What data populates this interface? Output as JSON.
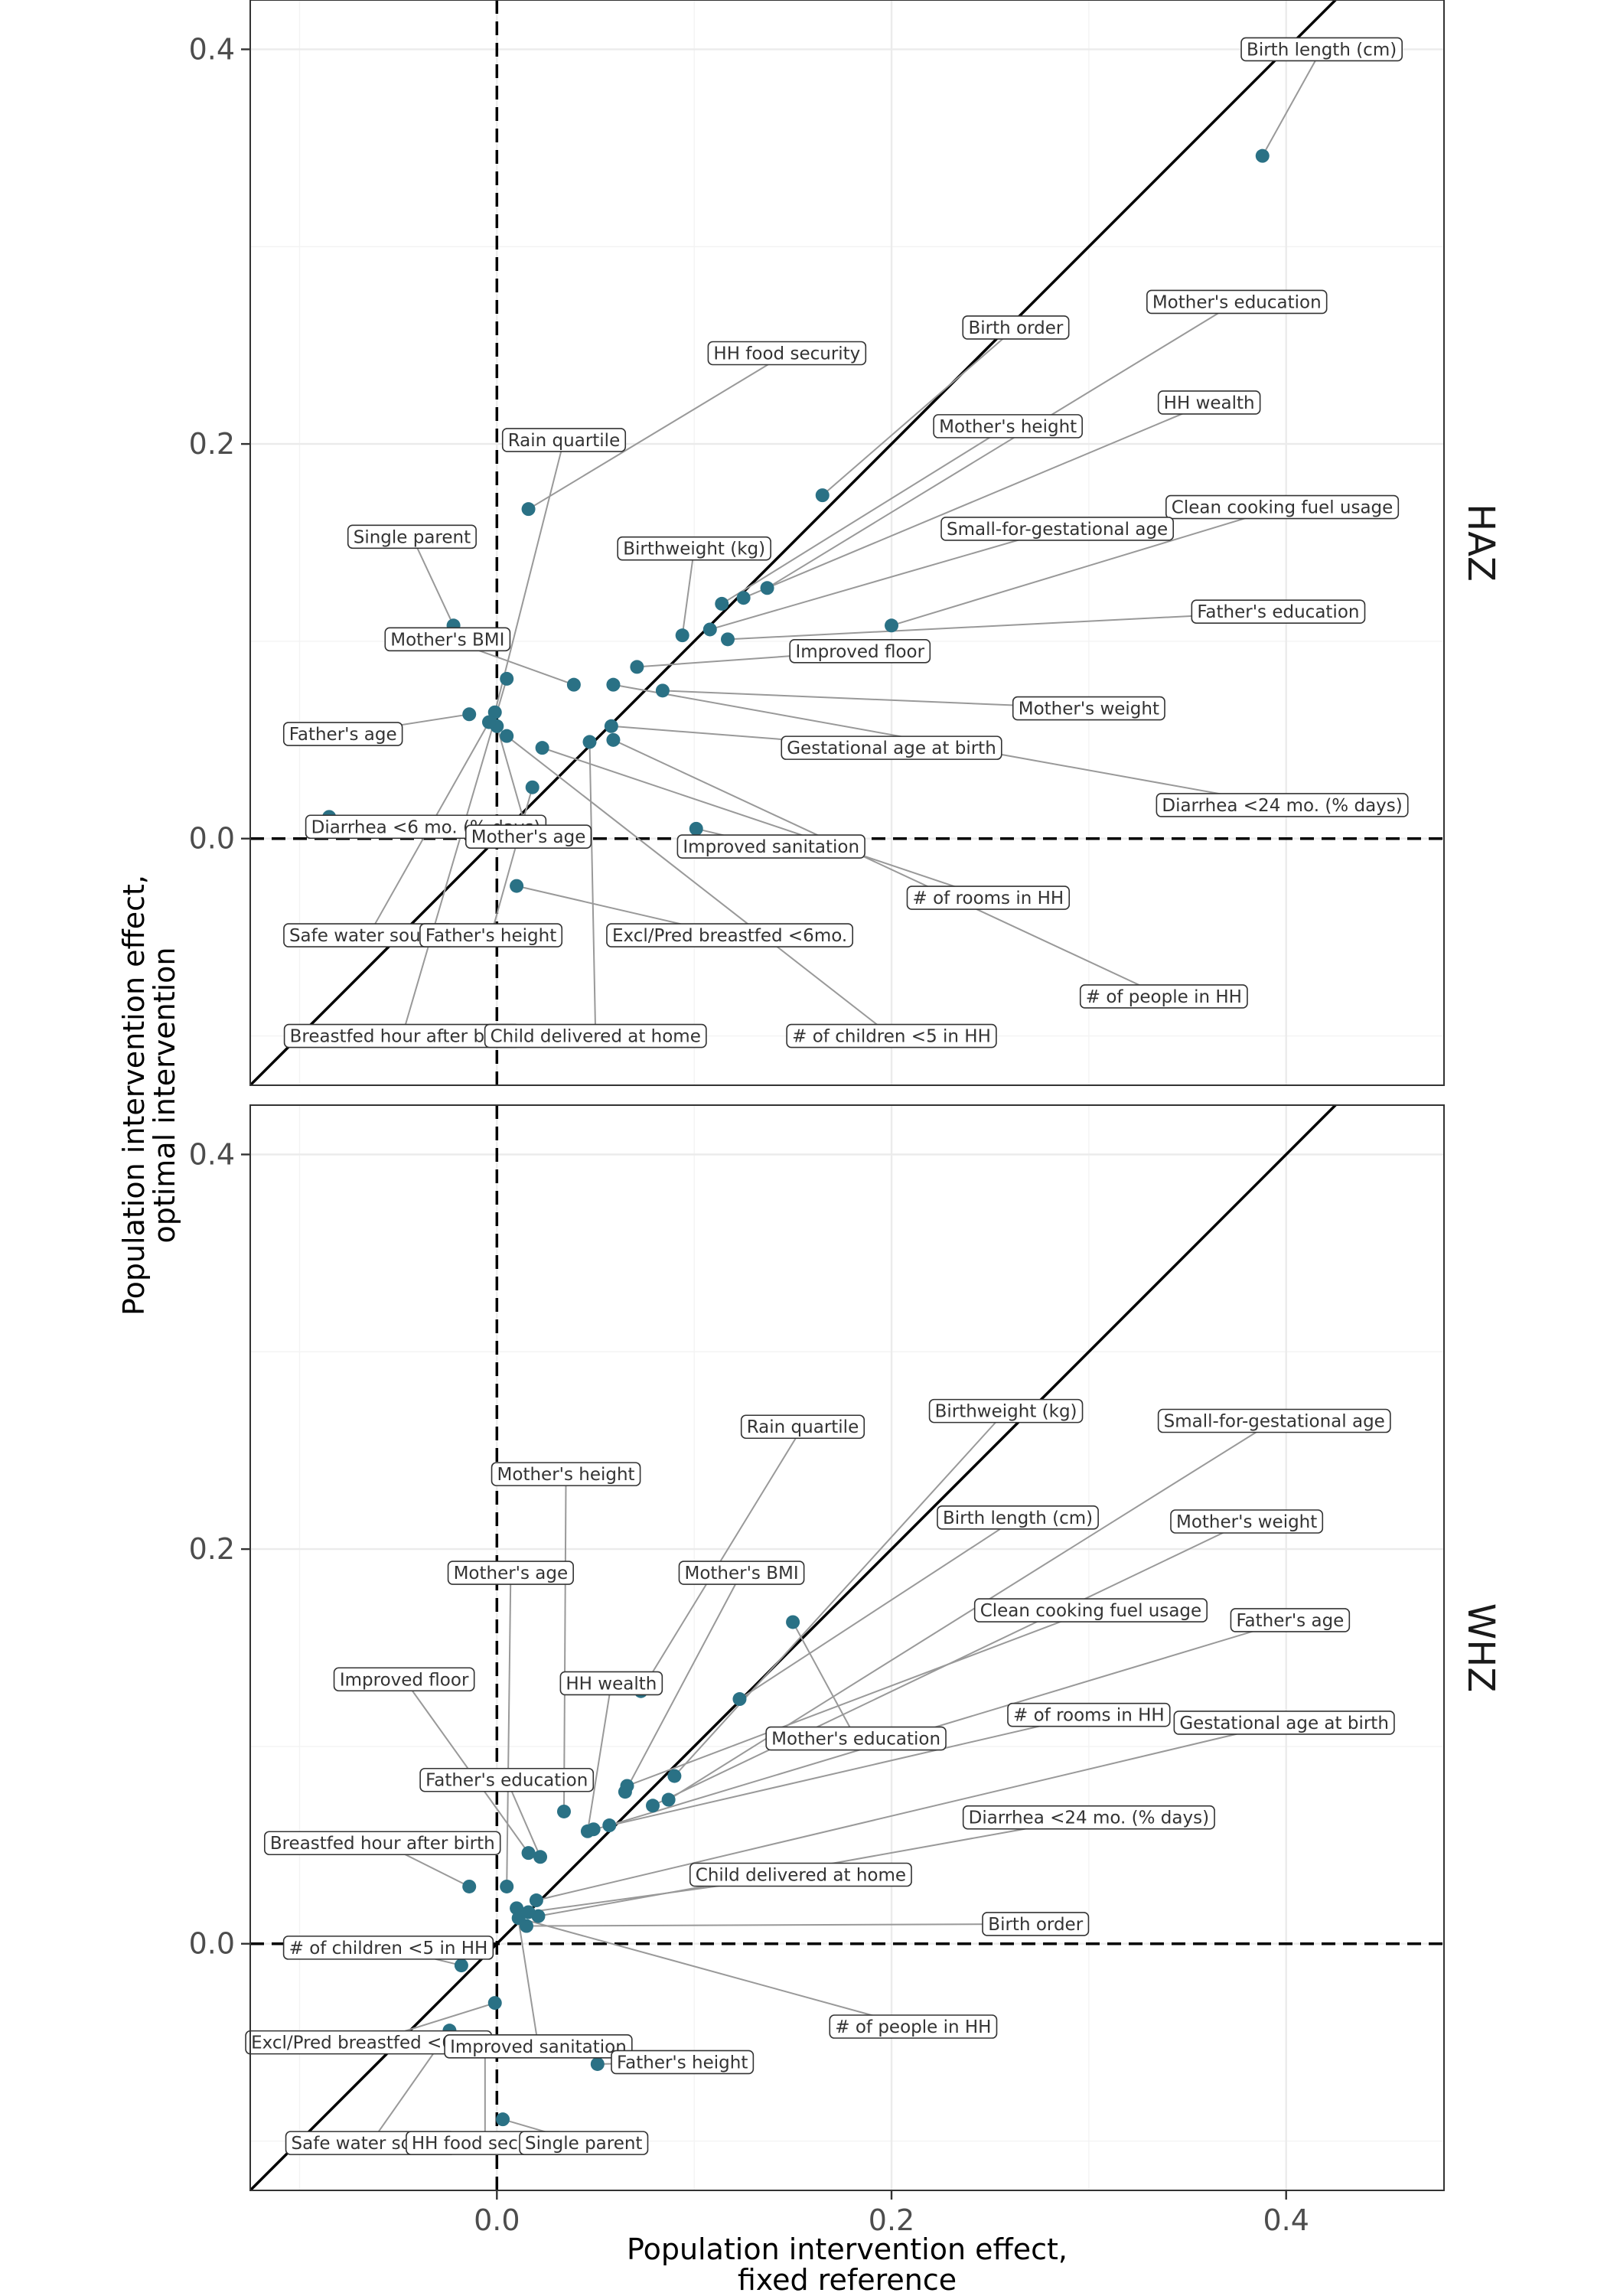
{
  "chart_data": {
    "type": "scatter",
    "xlabel": [
      "Population intervention effect,",
      "fixed reference"
    ],
    "ylabel": [
      "Population intervention effect,",
      "optimal intervention"
    ],
    "xlim": [
      -0.125,
      0.48
    ],
    "ylim": [
      -0.125,
      0.425
    ],
    "x_ticks": [
      0.0,
      0.2,
      0.4
    ],
    "y_ticks": [
      0.0,
      0.2,
      0.4
    ],
    "x_tick_labels": [
      "0.0",
      "0.2",
      "0.4"
    ],
    "y_tick_labels": [
      "0.0",
      "0.2",
      "0.4"
    ],
    "grid": true,
    "reference_lines": {
      "vertical_dashed_x": 0,
      "horizontal_dashed_y": 0,
      "identity_line": true
    },
    "point_color": "#2a7185",
    "panels": [
      {
        "strip": "HAZ",
        "points": [
          {
            "label": "Birth length (cm)",
            "x": 0.388,
            "y": 0.346,
            "lx": 0.418,
            "ly": 0.4
          },
          {
            "label": "Mother's education",
            "x": 0.137,
            "y": 0.127,
            "lx": 0.375,
            "ly": 0.272
          },
          {
            "label": "Birth order",
            "x": 0.165,
            "y": 0.174,
            "lx": 0.263,
            "ly": 0.259
          },
          {
            "label": "HH food security",
            "x": 0.016,
            "y": 0.167,
            "lx": 0.147,
            "ly": 0.246
          },
          {
            "label": "HH wealth",
            "x": 0.125,
            "y": 0.122,
            "lx": 0.361,
            "ly": 0.221
          },
          {
            "label": "Rain quartile",
            "x": -0.001,
            "y": 0.064,
            "lx": 0.034,
            "ly": 0.202
          },
          {
            "label": "Mother's height",
            "x": 0.114,
            "y": 0.119,
            "lx": 0.259,
            "ly": 0.209
          },
          {
            "label": "Clean cooking fuel usage",
            "x": 0.2,
            "y": 0.108,
            "lx": 0.398,
            "ly": 0.168
          },
          {
            "label": "Small-for-gestational age",
            "x": 0.108,
            "y": 0.106,
            "lx": 0.284,
            "ly": 0.157
          },
          {
            "label": "Single parent",
            "x": -0.022,
            "y": 0.108,
            "lx": -0.043,
            "ly": 0.153
          },
          {
            "label": "Birthweight (kg)",
            "x": 0.094,
            "y": 0.103,
            "lx": 0.1,
            "ly": 0.147
          },
          {
            "label": "Father's education",
            "x": 0.117,
            "y": 0.101,
            "lx": 0.396,
            "ly": 0.115
          },
          {
            "label": "Mother's BMI",
            "x": 0.039,
            "y": 0.078,
            "lx": -0.025,
            "ly": 0.101
          },
          {
            "label": "Improved floor",
            "x": 0.071,
            "y": 0.087,
            "lx": 0.184,
            "ly": 0.095
          },
          {
            "label": "Mother's weight",
            "x": 0.084,
            "y": 0.075,
            "lx": 0.3,
            "ly": 0.066
          },
          {
            "label": "Father's age",
            "x": -0.014,
            "y": 0.063,
            "lx": -0.078,
            "ly": 0.053
          },
          {
            "label": "Gestational age at birth",
            "x": 0.058,
            "y": 0.057,
            "lx": 0.2,
            "ly": 0.046
          },
          {
            "label": "Diarrhea <24 mo.  (% days)",
            "x": 0.059,
            "y": 0.078,
            "lx": 0.398,
            "ly": 0.017
          },
          {
            "label": "Diarrhea <6 mo. (% days)",
            "x": -0.085,
            "y": 0.011,
            "lx": -0.036,
            "ly": 0.006
          },
          {
            "label": "Mother's age",
            "x": 0.0,
            "y": 0.057,
            "lx": 0.016,
            "ly": 0.001
          },
          {
            "label": "Improved sanitation",
            "x": 0.101,
            "y": 0.005,
            "lx": 0.139,
            "ly": -0.004
          },
          {
            "label": "# of rooms in HH",
            "x": 0.023,
            "y": 0.046,
            "lx": 0.249,
            "ly": -0.03
          },
          {
            "label": "Safe water source",
            "x": -0.004,
            "y": 0.059,
            "lx": -0.065,
            "ly": -0.049
          },
          {
            "label": "Father's height",
            "x": 0.018,
            "y": 0.026,
            "lx": -0.003,
            "ly": -0.049
          },
          {
            "label": "Excl/Pred breastfed <6mo.",
            "x": 0.01,
            "y": -0.024,
            "lx": 0.118,
            "ly": -0.049
          },
          {
            "label": "# of people in HH",
            "x": 0.059,
            "y": 0.05,
            "lx": 0.338,
            "ly": -0.08
          },
          {
            "label": "Breastfed hour after birth",
            "x": 0.005,
            "y": 0.081,
            "lx": -0.048,
            "ly": -0.1
          },
          {
            "label": "Child delivered at home",
            "x": 0.047,
            "y": 0.049,
            "lx": 0.05,
            "ly": -0.1
          },
          {
            "label": "# of children <5 in HH",
            "x": 0.005,
            "y": 0.052,
            "lx": 0.2,
            "ly": -0.1
          }
        ]
      },
      {
        "strip": "WHZ",
        "points": [
          {
            "label": "Birthweight (kg)",
            "x": 0.09,
            "y": 0.085,
            "lx": 0.258,
            "ly": 0.27
          },
          {
            "label": "Small-for-gestational age",
            "x": 0.087,
            "y": 0.073,
            "lx": 0.394,
            "ly": 0.265
          },
          {
            "label": "Rain quartile",
            "x": 0.073,
            "y": 0.128,
            "lx": 0.155,
            "ly": 0.262
          },
          {
            "label": "Mother's height",
            "x": 0.034,
            "y": 0.067,
            "lx": 0.035,
            "ly": 0.238
          },
          {
            "label": "Birth length (cm)",
            "x": 0.123,
            "y": 0.124,
            "lx": 0.264,
            "ly": 0.216
          },
          {
            "label": "Mother's weight",
            "x": 0.079,
            "y": 0.07,
            "lx": 0.38,
            "ly": 0.214
          },
          {
            "label": "Mother's BMI",
            "x": 0.065,
            "y": 0.077,
            "lx": 0.124,
            "ly": 0.188
          },
          {
            "label": "Mother's age",
            "x": 0.005,
            "y": 0.029,
            "lx": 0.007,
            "ly": 0.188
          },
          {
            "label": "Clean cooking fuel usage",
            "x": 0.066,
            "y": 0.08,
            "lx": 0.301,
            "ly": 0.169
          },
          {
            "label": "Father's age",
            "x": 0.057,
            "y": 0.06,
            "lx": 0.402,
            "ly": 0.164
          },
          {
            "label": "Improved floor",
            "x": 0.016,
            "y": 0.046,
            "lx": -0.047,
            "ly": 0.134
          },
          {
            "label": "HH wealth",
            "x": 0.046,
            "y": 0.057,
            "lx": 0.058,
            "ly": 0.132
          },
          {
            "label": "# of rooms in HH",
            "x": 0.049,
            "y": 0.058,
            "lx": 0.3,
            "ly": 0.116
          },
          {
            "label": "Gestational age at birth",
            "x": 0.02,
            "y": 0.022,
            "lx": 0.399,
            "ly": 0.112
          },
          {
            "label": "Mother's education",
            "x": 0.15,
            "y": 0.163,
            "lx": 0.182,
            "ly": 0.104
          },
          {
            "label": "Father's education",
            "x": 0.022,
            "y": 0.044,
            "lx": 0.005,
            "ly": 0.083
          },
          {
            "label": "Breastfed hour after birth",
            "x": -0.014,
            "y": 0.029,
            "lx": -0.058,
            "ly": 0.051
          },
          {
            "label": "Diarrhea <24 mo.  (% days)",
            "x": 0.021,
            "y": 0.014,
            "lx": 0.3,
            "ly": 0.064
          },
          {
            "label": "Child delivered at home",
            "x": 0.016,
            "y": 0.016,
            "lx": 0.154,
            "ly": 0.035
          },
          {
            "label": "Birth order",
            "x": 0.015,
            "y": 0.009,
            "lx": 0.273,
            "ly": 0.01
          },
          {
            "label": "# of children <5 in HH",
            "x": -0.018,
            "y": -0.011,
            "lx": -0.055,
            "ly": -0.002
          },
          {
            "label": "# of people in HH",
            "x": 0.011,
            "y": 0.013,
            "lx": 0.211,
            "ly": -0.042
          },
          {
            "label": "Excl/Pred breastfed <6mo.",
            "x": -0.001,
            "y": -0.03,
            "lx": -0.065,
            "ly": -0.05
          },
          {
            "label": "Improved sanitation",
            "x": 0.01,
            "y": 0.018,
            "lx": 0.021,
            "ly": -0.052
          },
          {
            "label": "Father's height",
            "x": 0.051,
            "y": -0.061,
            "lx": 0.094,
            "ly": -0.06
          },
          {
            "label": "Safe water source",
            "x": -0.024,
            "y": -0.044,
            "lx": -0.064,
            "ly": -0.101
          },
          {
            "label": "HH food security",
            "x": -0.006,
            "y": -0.053,
            "lx": -0.006,
            "ly": -0.101
          },
          {
            "label": "Single parent",
            "x": 0.003,
            "y": -0.089,
            "lx": 0.044,
            "ly": -0.101
          }
        ]
      }
    ]
  }
}
